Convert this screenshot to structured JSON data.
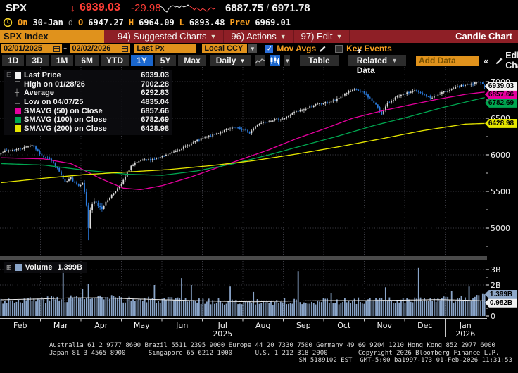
{
  "header": {
    "symbol": "SPX",
    "direction_arrow": "↓",
    "last_price": "6939.03",
    "change": "-29.98",
    "bid": "6887.75",
    "separator": "/",
    "ask": "6971.78",
    "spark_white": [
      [
        0,
        7
      ],
      [
        3,
        9
      ],
      [
        6,
        13
      ],
      [
        9,
        15
      ],
      [
        12,
        10
      ],
      [
        15,
        7
      ],
      [
        18,
        6
      ],
      [
        21,
        8
      ],
      [
        24,
        7
      ],
      [
        27,
        9
      ],
      [
        30,
        6
      ],
      [
        33,
        8
      ],
      [
        36,
        7
      ],
      [
        39,
        5
      ],
      [
        42,
        7
      ]
    ],
    "spark_red": [
      [
        42,
        7
      ],
      [
        45,
        9
      ],
      [
        48,
        12
      ],
      [
        51,
        9
      ],
      [
        54,
        11
      ],
      [
        57,
        13
      ],
      [
        60,
        10
      ],
      [
        63,
        12
      ],
      [
        66,
        14
      ],
      [
        69,
        11
      ],
      [
        72,
        9
      ],
      [
        75,
        11
      ],
      [
        78,
        10
      ]
    ]
  },
  "session": {
    "on_label": "On",
    "date": "30-Jan",
    "delayed": "d",
    "open_label": "O",
    "open": "6947.27",
    "high_label": "H",
    "high": "6964.09",
    "low_label": "L",
    "low": "6893.48",
    "prev_label": "Prev",
    "prev": "6969.01"
  },
  "menubar": {
    "security": "SPX Index",
    "items": [
      {
        "label": "94) Suggested Charts"
      },
      {
        "label": "96) Actions"
      },
      {
        "label": "97) Edit"
      }
    ],
    "right_label": "Candle Chart"
  },
  "controls": {
    "date_from": "02/01/2025",
    "dash": "-",
    "date_to": "02/02/2026",
    "price_field": "Last Px",
    "currency": "Local CCY",
    "mov_avgs_label": "Mov Avgs",
    "mov_avgs_checked": "✓",
    "key_events_label": "Key Events"
  },
  "toolbar": {
    "periods": [
      "1D",
      "3D",
      "1M",
      "6M",
      "YTD",
      "1Y",
      "5Y",
      "Max"
    ],
    "selected_period": "1Y",
    "frequency": "Daily",
    "table_label": "Table",
    "related_label": "+ Related Data",
    "add_data_placeholder": "Add Data",
    "collapse_label": "«",
    "edit_chart_label": "Edit Chart"
  },
  "legend": {
    "rows": [
      {
        "marker": "square",
        "color": "#f2f2f2",
        "label": "Last Price",
        "value": "6939.03"
      },
      {
        "marker": "glyph",
        "glyph": "⊤",
        "label": "High on 01/28/26",
        "value": "7002.28"
      },
      {
        "marker": "glyph",
        "glyph": "┼",
        "label": "Average",
        "value": "6292.83"
      },
      {
        "marker": "glyph",
        "glyph": "⊥",
        "label": "Low on 04/07/25",
        "value": "4835.04"
      },
      {
        "marker": "square",
        "color": "#e6009e",
        "label": "SMAVG (50) on Close",
        "value": "6857.66"
      },
      {
        "marker": "square",
        "color": "#00a650",
        "label": "SMAVG (100) on Close",
        "value": "6782.69"
      },
      {
        "marker": "square",
        "color": "#e6e600",
        "label": "SMAVG (200) on Close",
        "value": "6428.98"
      }
    ],
    "expander": "⊟"
  },
  "volume_legend": {
    "expander": "⊞",
    "label": "Volume",
    "value": "1.399B"
  },
  "chart_data": {
    "type": "candlestick+volume",
    "symbol": "SPX Index",
    "x_range": [
      "02/01/2025",
      "02/02/2026"
    ],
    "days": 250,
    "price_axis": {
      "min": 4600,
      "max": 7200,
      "ticks": [
        7000,
        6500,
        6000,
        5500,
        5000
      ],
      "minor_ticks": [
        6750,
        6250,
        5750,
        5250,
        4750
      ]
    },
    "volume_axis": {
      "ticks": [
        {
          "value": 3,
          "label": "3B"
        },
        {
          "value": 2,
          "label": "2B"
        },
        {
          "value": 0,
          "label": "0"
        }
      ],
      "minor_ticks": [
        2.5,
        1.5,
        0.5
      ]
    },
    "stats": {
      "last_price": 6939.03,
      "high": {
        "date": "01/28/26",
        "value": 7002.28
      },
      "average": 6292.83,
      "low": {
        "date": "04/07/25",
        "value": 4835.04
      },
      "smavg50": 6857.66,
      "smavg100": 6782.69,
      "smavg200": 6428.98,
      "last_day": {
        "open": 6947.27,
        "high": 6964.09,
        "low": 6893.48,
        "close": 6939.03,
        "prev": 6969.01
      }
    },
    "close_anchors": [
      [
        0,
        6040
      ],
      [
        11,
        6090
      ],
      [
        16,
        6140
      ],
      [
        21,
        5985
      ],
      [
        25,
        5950
      ],
      [
        30,
        5770
      ],
      [
        33,
        5615
      ],
      [
        36,
        5680
      ],
      [
        40,
        5580
      ],
      [
        42,
        5630
      ],
      [
        44,
        5320
      ],
      [
        45,
        5000
      ],
      [
        46,
        5250
      ],
      [
        48,
        5350
      ],
      [
        52,
        5280
      ],
      [
        56,
        5420
      ],
      [
        62,
        5600
      ],
      [
        67,
        5850
      ],
      [
        72,
        5920
      ],
      [
        78,
        5940
      ],
      [
        83,
        5970
      ],
      [
        88,
        6030
      ],
      [
        94,
        6100
      ],
      [
        100,
        6180
      ],
      [
        104,
        6230
      ],
      [
        110,
        6280
      ],
      [
        115,
        6330
      ],
      [
        120,
        6370
      ],
      [
        125,
        6340
      ],
      [
        128,
        6300
      ],
      [
        132,
        6420
      ],
      [
        137,
        6460
      ],
      [
        141,
        6480
      ],
      [
        146,
        6500
      ],
      [
        151,
        6580
      ],
      [
        156,
        6620
      ],
      [
        161,
        6680
      ],
      [
        167,
        6710
      ],
      [
        172,
        6740
      ],
      [
        178,
        6850
      ],
      [
        183,
        6890
      ],
      [
        187,
        6840
      ],
      [
        190,
        6770
      ],
      [
        194,
        6650
      ],
      [
        196,
        6560
      ],
      [
        199,
        6700
      ],
      [
        203,
        6780
      ],
      [
        208,
        6830
      ],
      [
        213,
        6880
      ],
      [
        217,
        6830
      ],
      [
        221,
        6780
      ],
      [
        225,
        6820
      ],
      [
        229,
        6870
      ],
      [
        234,
        6920
      ],
      [
        238,
        6950
      ],
      [
        242,
        6960
      ],
      [
        246,
        7000
      ],
      [
        247,
        6985
      ],
      [
        248,
        6969.01
      ],
      [
        249,
        6939.03
      ]
    ],
    "smavg50_anchors": [
      [
        0,
        5960
      ],
      [
        22,
        5945
      ],
      [
        36,
        5880
      ],
      [
        51,
        5680
      ],
      [
        63,
        5545
      ],
      [
        72,
        5525
      ],
      [
        83,
        5580
      ],
      [
        98,
        5700
      ],
      [
        112,
        5830
      ],
      [
        125,
        5950
      ],
      [
        138,
        6070
      ],
      [
        152,
        6220
      ],
      [
        167,
        6360
      ],
      [
        181,
        6500
      ],
      [
        196,
        6600
      ],
      [
        210,
        6680
      ],
      [
        225,
        6760
      ],
      [
        240,
        6830
      ],
      [
        249,
        6857.66
      ]
    ],
    "smavg100_anchors": [
      [
        0,
        5880
      ],
      [
        22,
        5860
      ],
      [
        43,
        5790
      ],
      [
        65,
        5735
      ],
      [
        83,
        5720
      ],
      [
        101,
        5780
      ],
      [
        120,
        5880
      ],
      [
        138,
        6000
      ],
      [
        156,
        6130
      ],
      [
        174,
        6260
      ],
      [
        192,
        6400
      ],
      [
        210,
        6520
      ],
      [
        228,
        6650
      ],
      [
        249,
        6782.69
      ]
    ],
    "smavg200_anchors": [
      [
        0,
        5620
      ],
      [
        22,
        5680
      ],
      [
        43,
        5730
      ],
      [
        65,
        5765
      ],
      [
        87,
        5800
      ],
      [
        109,
        5855
      ],
      [
        130,
        5920
      ],
      [
        152,
        6010
      ],
      [
        174,
        6110
      ],
      [
        196,
        6220
      ],
      [
        217,
        6330
      ],
      [
        239,
        6420
      ],
      [
        249,
        6428.98
      ]
    ],
    "volume": {
      "last": 1.399,
      "ma_last": 0.982,
      "base_anchors": [
        [
          0,
          1.0
        ],
        [
          20,
          1.05
        ],
        [
          32,
          1.15
        ],
        [
          50,
          1.15
        ],
        [
          70,
          1.05
        ],
        [
          90,
          1.0
        ],
        [
          110,
          0.95
        ],
        [
          130,
          0.9
        ],
        [
          150,
          0.95
        ],
        [
          170,
          0.95
        ],
        [
          190,
          1.0
        ],
        [
          210,
          1.0
        ],
        [
          225,
          1.05
        ],
        [
          240,
          1.1
        ],
        [
          249,
          1.25
        ]
      ],
      "spikes": {
        "32": 2.95,
        "42": 1.75,
        "45": 2.05,
        "79": 2.0,
        "93": 2.45,
        "98": 2.0,
        "118": 1.9,
        "130": 1.55,
        "153": 2.9,
        "170": 1.5,
        "198": 1.85,
        "215": 3.1,
        "232": 1.6,
        "241": 1.9,
        "249": 1.399
      },
      "ma_anchors": [
        [
          0,
          1.05
        ],
        [
          20,
          1.1
        ],
        [
          35,
          1.17
        ],
        [
          50,
          1.18
        ],
        [
          70,
          1.1
        ],
        [
          90,
          1.03
        ],
        [
          110,
          0.96
        ],
        [
          130,
          0.92
        ],
        [
          150,
          0.97
        ],
        [
          170,
          1.0
        ],
        [
          190,
          1.0
        ],
        [
          210,
          1.03
        ],
        [
          225,
          1.06
        ],
        [
          240,
          1.02
        ],
        [
          249,
          0.982
        ]
      ]
    },
    "months": [
      "Feb",
      "Mar",
      "Apr",
      "May",
      "Jun",
      "Jul",
      "Aug",
      "Sep",
      "Oct",
      "Nov",
      "Dec",
      "Jan"
    ],
    "years": [
      {
        "label": "2025",
        "month_index": 5
      },
      {
        "label": "2026",
        "month_index": 11
      }
    ],
    "colors": {
      "up": "#dcdcdc",
      "down": "#2b7bdd",
      "smavg50": "#e6009e",
      "smavg100": "#00a650",
      "smavg200": "#e6e600",
      "volume_bar": "#8aa5c9",
      "volume_ma": "#e8e8e8"
    },
    "price_tags": [
      {
        "text": "6939.03",
        "price": 6939.03,
        "bg": "#f2f2f2"
      },
      {
        "text": "6857.66",
        "price": 6857.66,
        "bg": "#e6009e"
      },
      {
        "text": "6782.69",
        "price": 6782.69,
        "bg": "#00a650"
      },
      {
        "text": "6428.98",
        "price": 6428.98,
        "bg": "#e6e600"
      }
    ],
    "volume_tags": [
      {
        "text": "1.399B",
        "value": 1.399,
        "bg": "#8fa8c8"
      },
      {
        "text": "0.982B",
        "value": 0.982,
        "bg": "#f2f2f2"
      }
    ],
    "legend_position": "top-left",
    "grid": true
  },
  "footer": {
    "line1": "Australia 61 2 9777 8600 Brazil 5511 2395 9000 Europe 44 20 7330 7500 Germany 49 69 9204 1210 Hong Kong 852 2977 6000",
    "line2": "Japan 81 3 4565 8900      Singapore 65 6212 1000      U.S. 1 212 318 2000        Copyright 2026 Bloomberg Finance L.P.",
    "line3": "SN 5189102 EST  GMT-5:00 ba1997-173 01-Feb-2026 11:31:53"
  }
}
